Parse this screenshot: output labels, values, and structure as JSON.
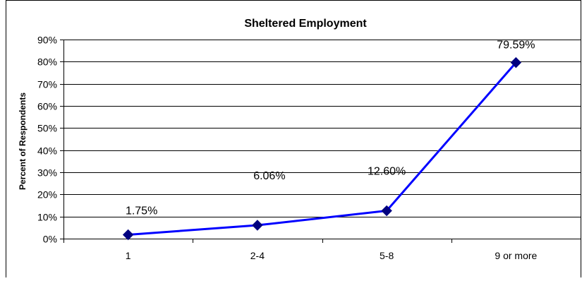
{
  "chart_data": {
    "type": "line",
    "title": "Sheltered Employment",
    "xlabel": "",
    "ylabel": "Percent of Respondents",
    "categories": [
      "1",
      "2-4",
      "5-8",
      "9 or more"
    ],
    "series": [
      {
        "values": [
          1.75,
          6.06,
          12.6,
          79.59
        ],
        "data_labels": [
          "1.75%",
          "6.06%",
          "12.60%",
          "79.59%"
        ],
        "color": "#0000ff",
        "marker_color": "#000080",
        "marker": "diamond"
      }
    ],
    "ylim": [
      0,
      90
    ],
    "yticks": [
      0,
      10,
      20,
      30,
      40,
      50,
      60,
      70,
      80,
      90
    ],
    "ytick_labels": [
      "0%",
      "10%",
      "20%",
      "30%",
      "40%",
      "50%",
      "60%",
      "70%",
      "80%",
      "90%"
    ],
    "grid": true,
    "legend": "none"
  }
}
